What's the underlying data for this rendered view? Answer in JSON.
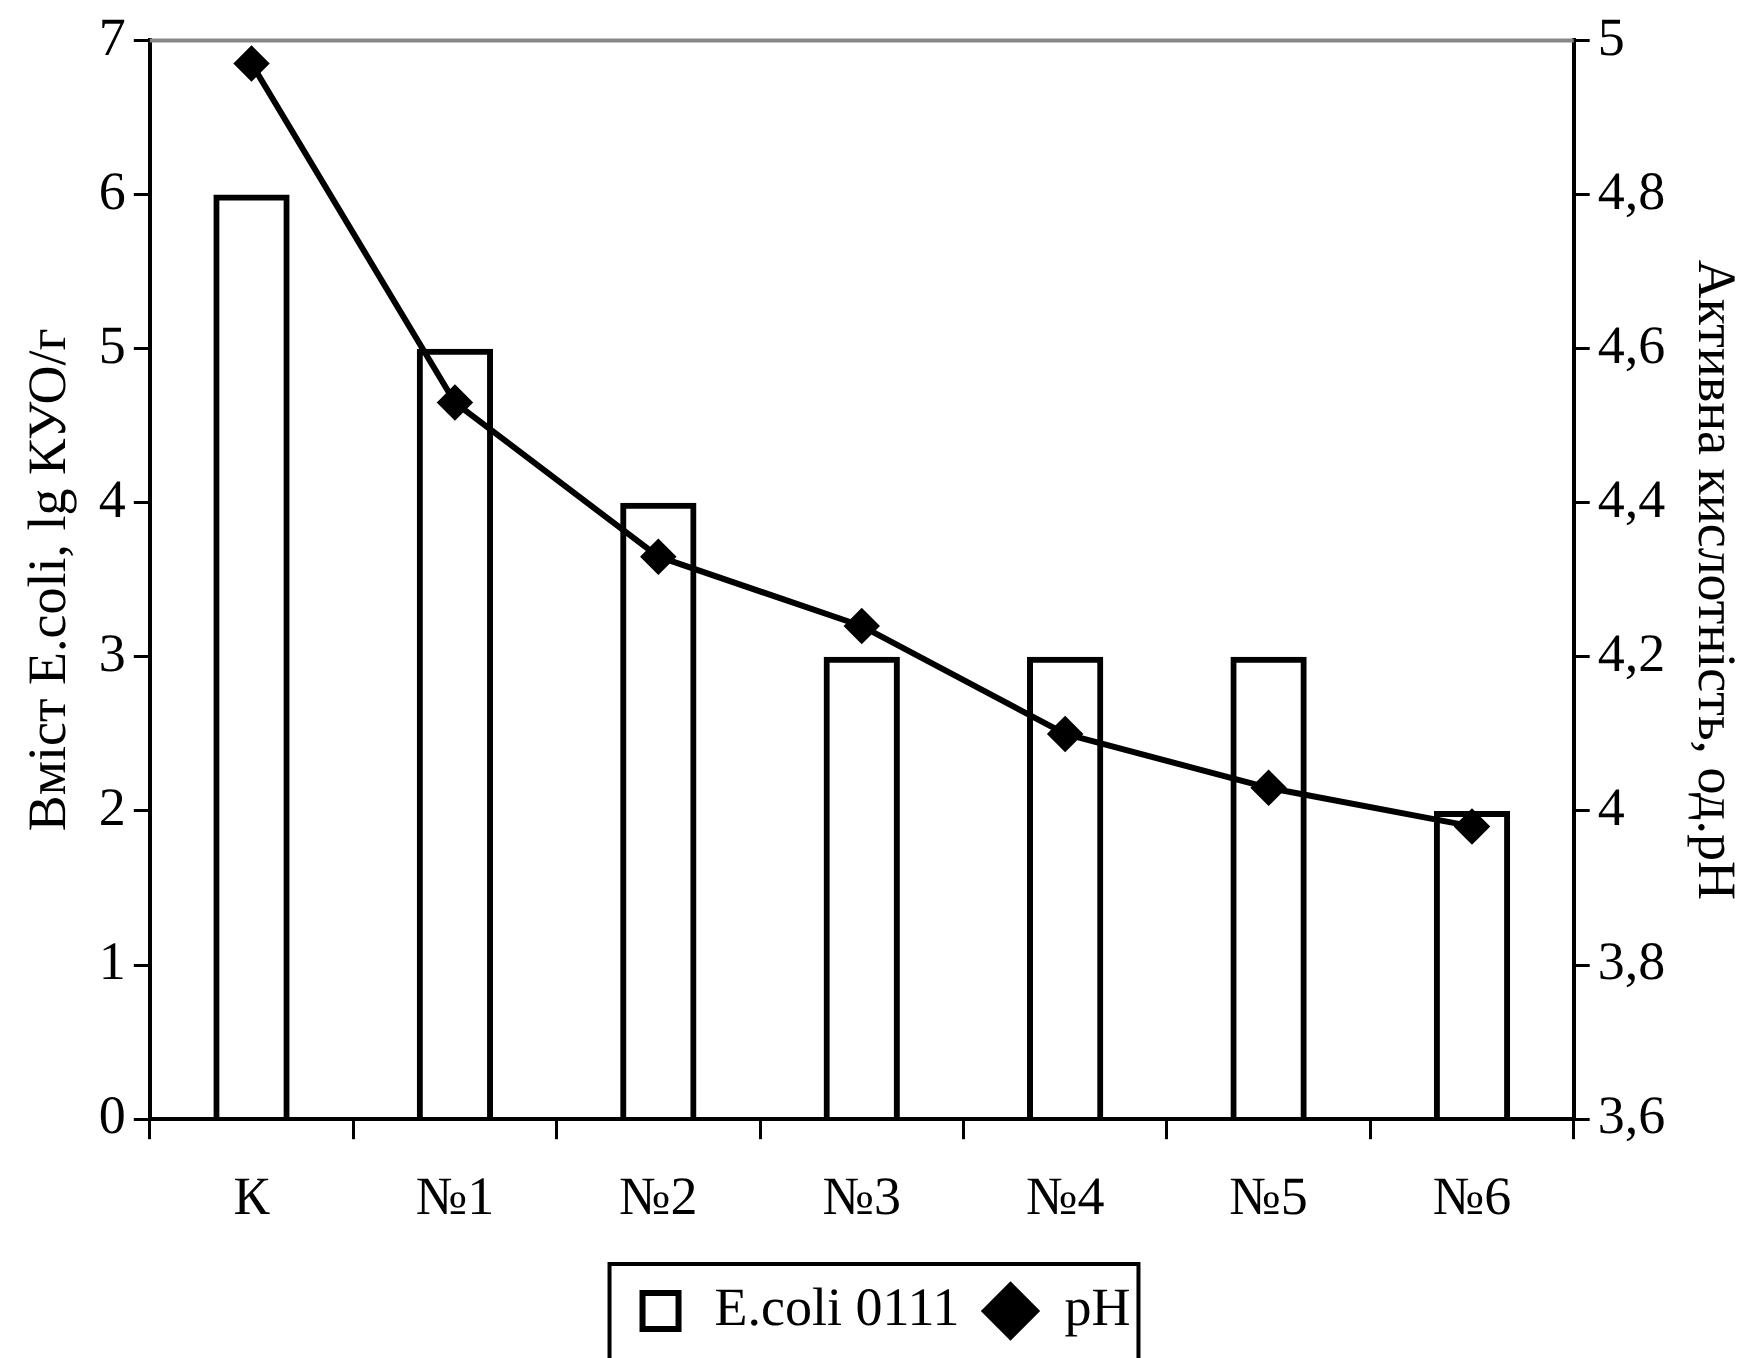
{
  "chart_data": {
    "type": "bar",
    "categories": [
      "К",
      "№1",
      "№2",
      "№3",
      "№4",
      "№5",
      "№6"
    ],
    "series": [
      {
        "name": "E.coli 0111",
        "color": "#000000",
        "values": [
          6,
          5,
          4,
          3,
          3,
          3,
          2
        ]
      },
      {
        "name": "pH",
        "type": "line",
        "axis": "y2",
        "color": "#000000",
        "marker": "diamond",
        "values": [
          4.97,
          4.53,
          4.33,
          4.24,
          4.1,
          4.03,
          3.98
        ]
      }
    ],
    "ylabel": "Вміст E.coli, lg КУО/г",
    "y2label": "Активна кислотність, од.рН",
    "ylim": [
      0,
      7
    ],
    "yticks": [
      0,
      1,
      2,
      3,
      4,
      5,
      6,
      7
    ],
    "y2lim": [
      3.6,
      5
    ],
    "y2ticks": [
      {
        "value": 3.6,
        "label": "3,6"
      },
      {
        "value": 3.8,
        "label": "3,8"
      },
      4,
      {
        "value": 4.2,
        "label": "4,2"
      },
      {
        "value": 4.4,
        "label": "4,4"
      },
      {
        "value": 4.6,
        "label": "4,6"
      },
      {
        "value": 4.8,
        "label": "4,8"
      },
      5
    ],
    "legend": "bottom",
    "grid": false
  }
}
